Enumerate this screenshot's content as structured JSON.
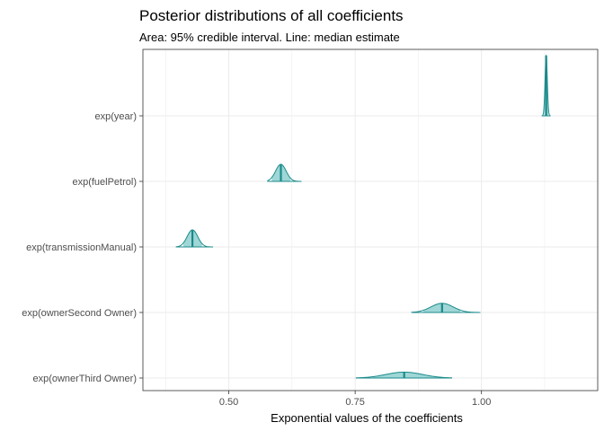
{
  "chart_data": {
    "type": "ridgeline",
    "title": "Posterior distributions of all coefficients",
    "subtitle": "Area: 95% credible interval. Line: median estimate",
    "xlabel": "Exponential values of the coefficients",
    "ylabel": "",
    "xlim": [
      0.33,
      1.23
    ],
    "x_ticks": [
      0.5,
      0.75,
      1.0
    ],
    "x_tick_labels": [
      "0.50",
      "0.75",
      "1.00"
    ],
    "grid": true,
    "fill_color": "#9fd6d6",
    "line_color": "#1b8a8a",
    "median_color": "#1b8a8a",
    "categories": [
      "exp(year)",
      "exp(fuelPetrol)",
      "exp(transmissionManual)",
      "exp(ownerSecond Owner)",
      "exp(ownerThird Owner)"
    ],
    "series": [
      {
        "label": "exp(year)",
        "median": 1.128,
        "ci": [
          1.124,
          1.132
        ],
        "min": 1.12,
        "max": 1.136,
        "sd": 0.0022,
        "peak": 0.92
      },
      {
        "label": "exp(fuelPetrol)",
        "median": 0.603,
        "ci": [
          0.585,
          0.622
        ],
        "min": 0.577,
        "max": 0.643,
        "sd": 0.0105,
        "peak": 0.26
      },
      {
        "label": "exp(transmissionManual)",
        "median": 0.428,
        "ci": [
          0.41,
          0.447
        ],
        "min": 0.396,
        "max": 0.468,
        "sd": 0.0105,
        "peak": 0.26
      },
      {
        "label": "exp(ownerSecond Owner)",
        "median": 0.922,
        "ci": [
          0.885,
          0.958
        ],
        "min": 0.862,
        "max": 0.997,
        "sd": 0.022,
        "peak": 0.14
      },
      {
        "label": "exp(ownerThird Owner)",
        "median": 0.847,
        "ci": [
          0.784,
          0.913
        ],
        "min": 0.752,
        "max": 0.941,
        "sd": 0.036,
        "peak": 0.09
      }
    ]
  }
}
